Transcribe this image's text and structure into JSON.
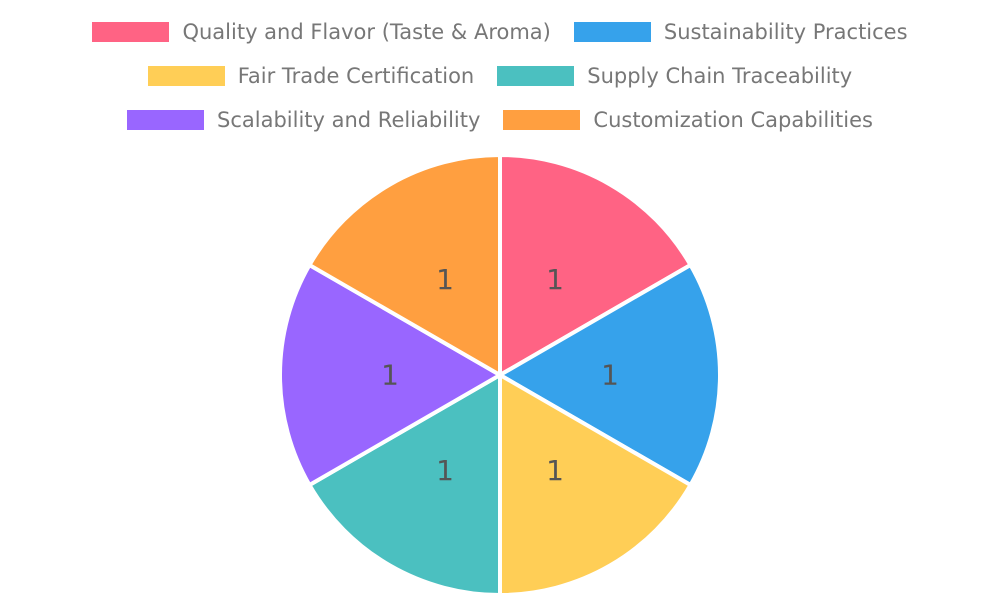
{
  "chart_data": {
    "type": "pie",
    "title": "",
    "categories": [
      "Quality and Flavor (Taste & Aroma)",
      "Sustainability Practices",
      "Fair Trade Certification",
      "Supply Chain Traceability",
      "Scalability and Reliability",
      "Customization Capabilities"
    ],
    "values": [
      1,
      1,
      1,
      1,
      1,
      1
    ],
    "labels": [
      "1",
      "1",
      "1",
      "1",
      "1",
      "1"
    ],
    "colors": [
      "#FF6384",
      "#36A2EB",
      "#FFCE56",
      "#4BC0C0",
      "#9966FF",
      "#FF9F40"
    ],
    "start_angle_deg": 90,
    "direction": "clockwise",
    "slice_border_color": "#ffffff",
    "label_color": "#555555",
    "label_distance": 0.5,
    "legend": {
      "position": "top",
      "columns": 2,
      "text_color": "#777777"
    }
  }
}
